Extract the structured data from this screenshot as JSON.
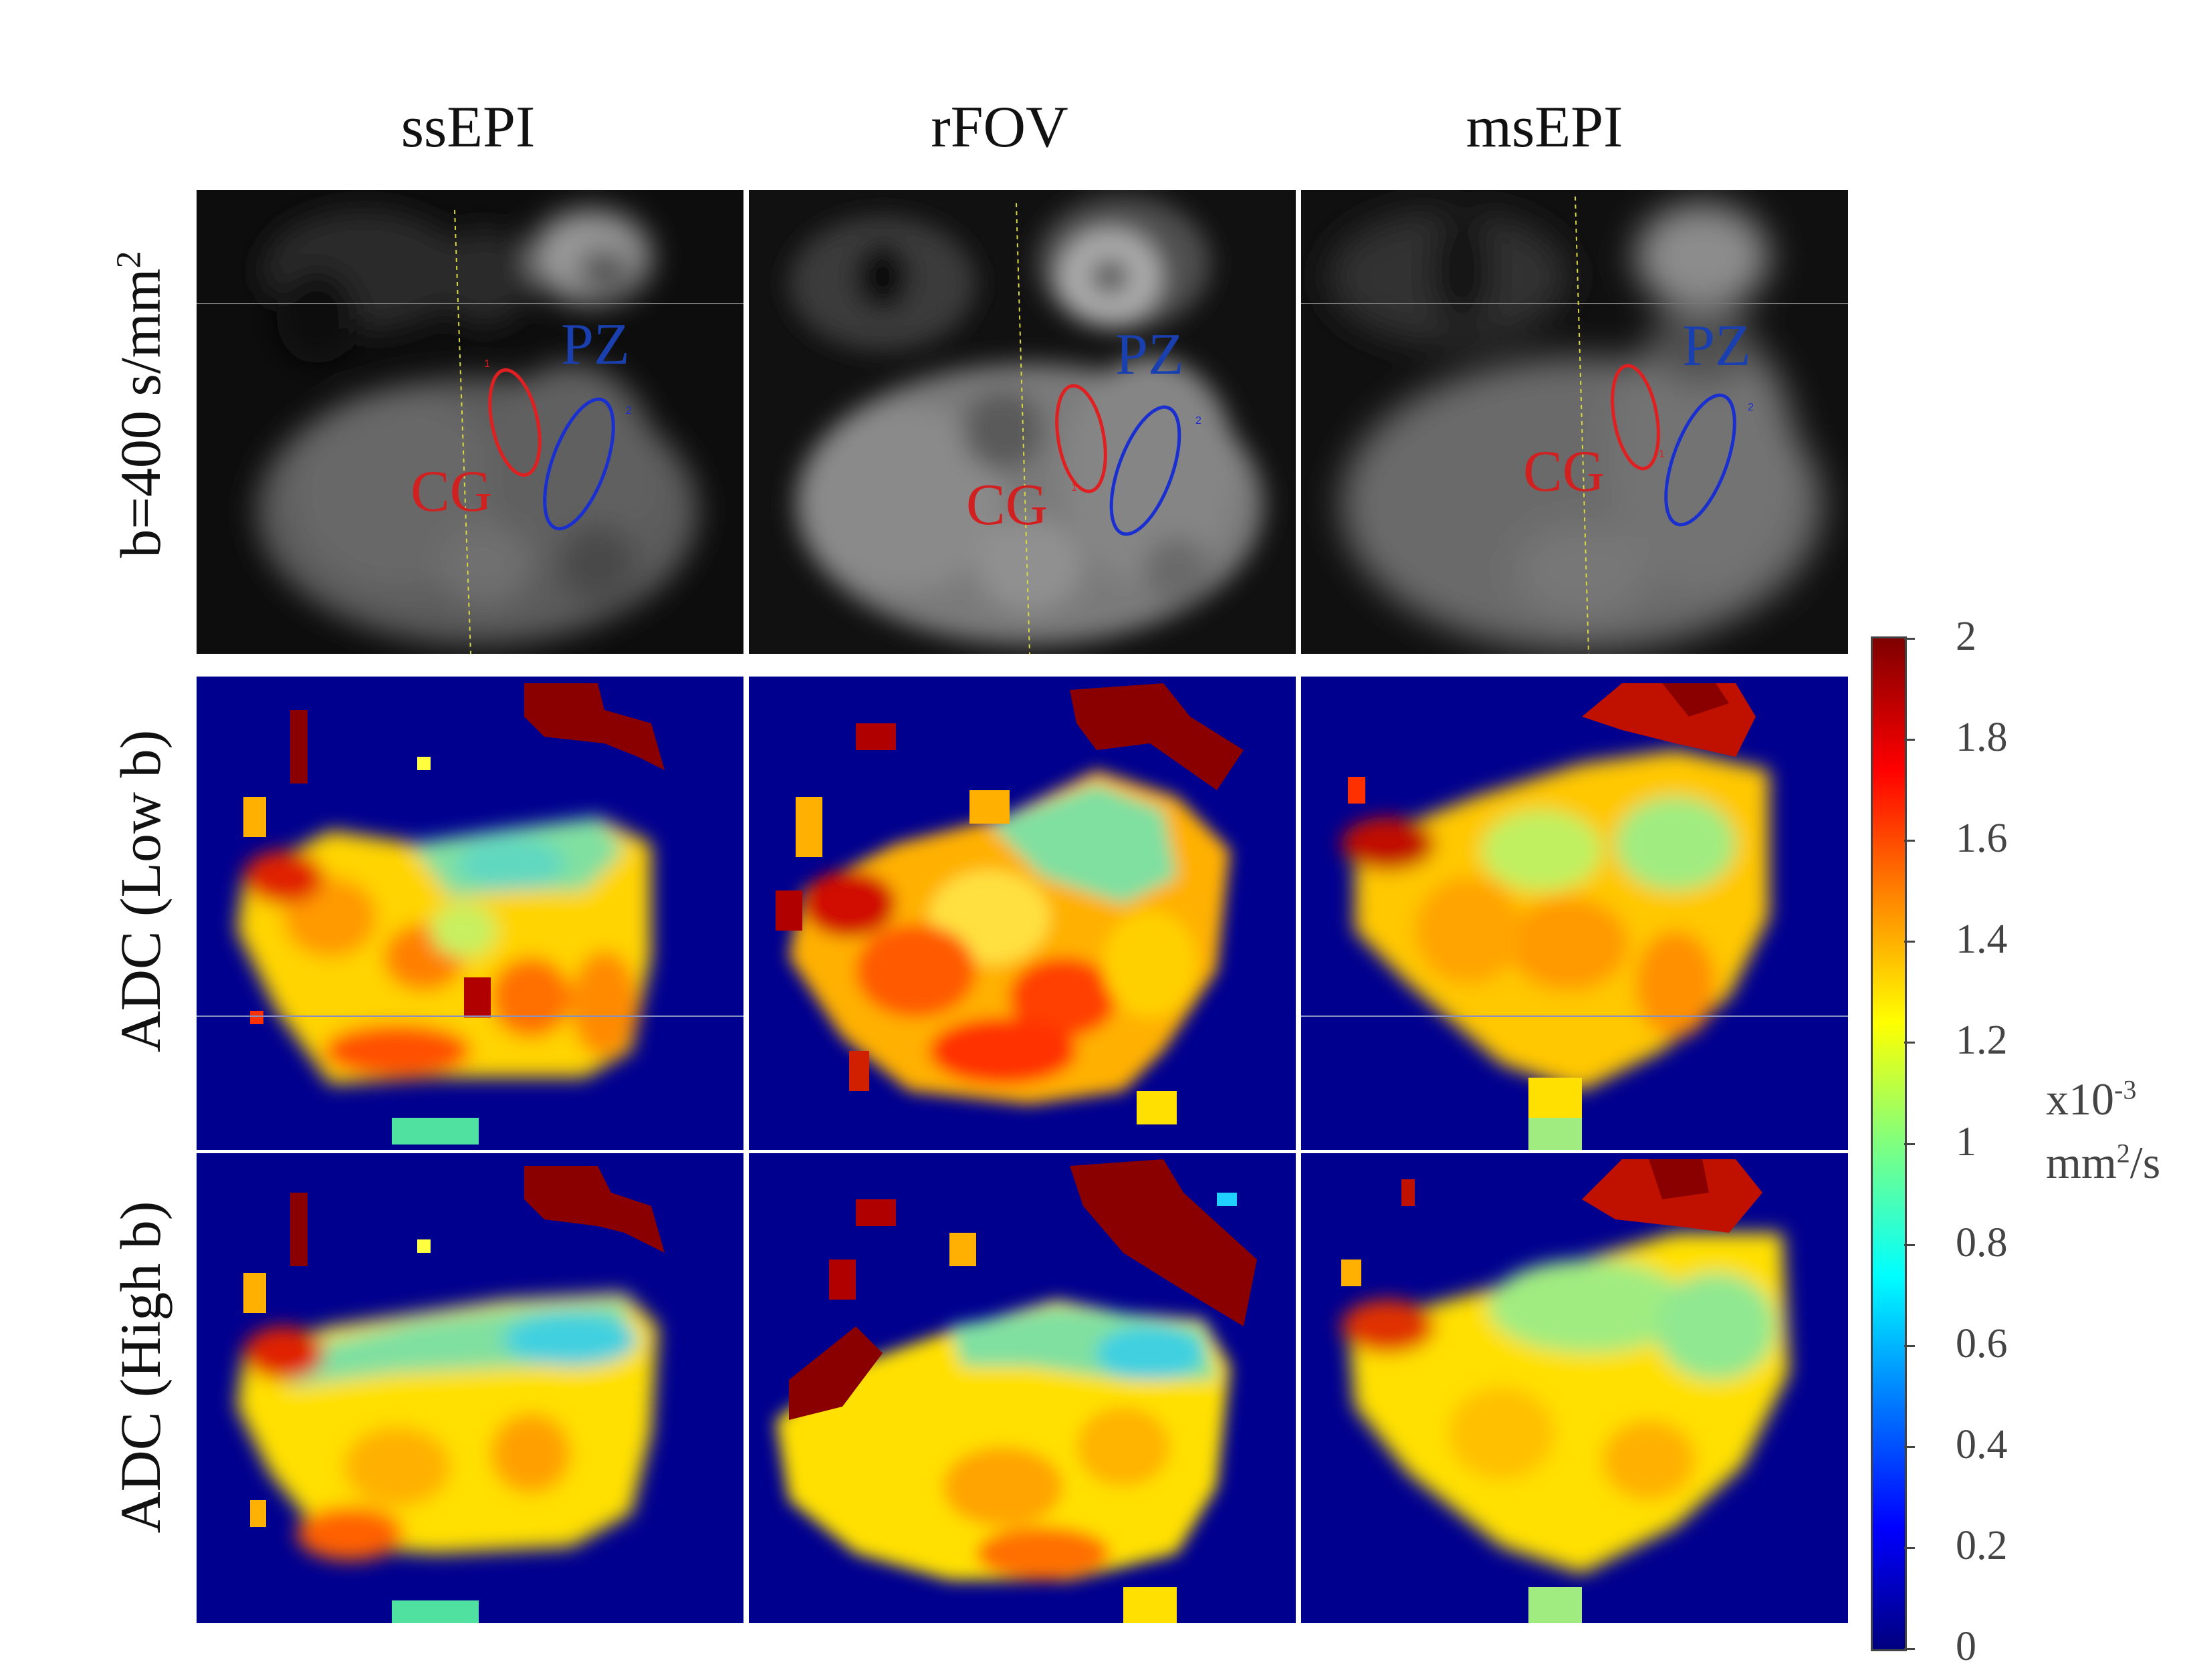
{
  "columns": [
    "ssEPI",
    "rFOV",
    "msEPI"
  ],
  "rows": {
    "b400": "b=400 s/mm",
    "b400_sup": "2",
    "adc_low": "ADC (Low b)",
    "adc_high": "ADC (High b)"
  },
  "roi_labels": {
    "cg": "CG",
    "pz": "PZ",
    "cg_num": "1",
    "pz_num": "2"
  },
  "roi_colors": {
    "cg": "#e02020",
    "pz": "#1a2fd0"
  },
  "colorbar": {
    "ticks": [
      "2",
      "1.8",
      "1.6",
      "1.4",
      "1.2",
      "1",
      "0.8",
      "0.6",
      "0.4",
      "0.2",
      "0"
    ],
    "unit_line1": "x10",
    "unit_line1_sup": "-3",
    "unit_line2": "mm",
    "unit_line2_sup": "2",
    "unit_line2_suffix": "/s",
    "colormap": "jet",
    "range": [
      0,
      2
    ]
  }
}
